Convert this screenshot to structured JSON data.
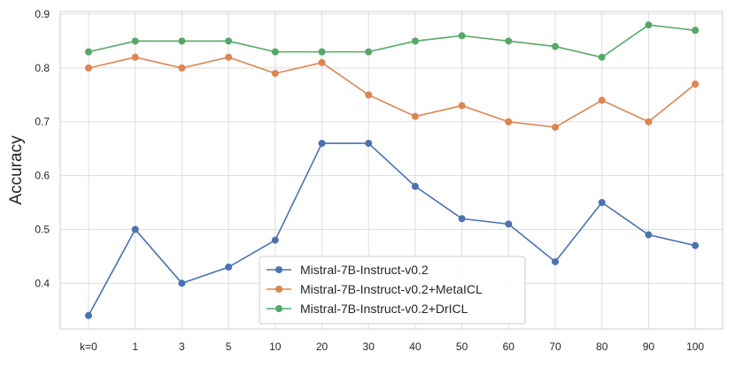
{
  "chart_data": {
    "type": "line",
    "title": "",
    "xlabel": "",
    "ylabel": "Accuracy",
    "categories": [
      "k=0",
      "1",
      "3",
      "5",
      "10",
      "20",
      "30",
      "40",
      "50",
      "60",
      "70",
      "80",
      "90",
      "100"
    ],
    "ylim": [
      0.315,
      0.905
    ],
    "yticks": [
      "0.4",
      "0.5",
      "0.6",
      "0.7",
      "0.8",
      "0.9"
    ],
    "ytick_values": [
      0.4,
      0.5,
      0.6,
      0.7,
      0.8,
      0.9
    ],
    "grid": true,
    "legend_position": "lower-center",
    "series": [
      {
        "name": "Mistral-7B-Instruct-v0.2",
        "color": "#4c72b0",
        "values": [
          0.34,
          0.5,
          0.4,
          0.43,
          0.48,
          0.66,
          0.66,
          0.58,
          0.52,
          0.51,
          0.44,
          0.55,
          0.49,
          0.47
        ]
      },
      {
        "name": "Mistral-7B-Instruct-v0.2+MetaICL",
        "color": "#dd8452",
        "values": [
          0.8,
          0.82,
          0.8,
          0.82,
          0.79,
          0.81,
          0.75,
          0.71,
          0.73,
          0.7,
          0.69,
          0.74,
          0.7,
          0.77
        ]
      },
      {
        "name": "Mistral-7B-Instruct-v0.2+DrICL",
        "color": "#55a868",
        "values": [
          0.83,
          0.85,
          0.85,
          0.85,
          0.83,
          0.83,
          0.83,
          0.85,
          0.86,
          0.85,
          0.84,
          0.82,
          0.88,
          0.87
        ]
      }
    ]
  }
}
